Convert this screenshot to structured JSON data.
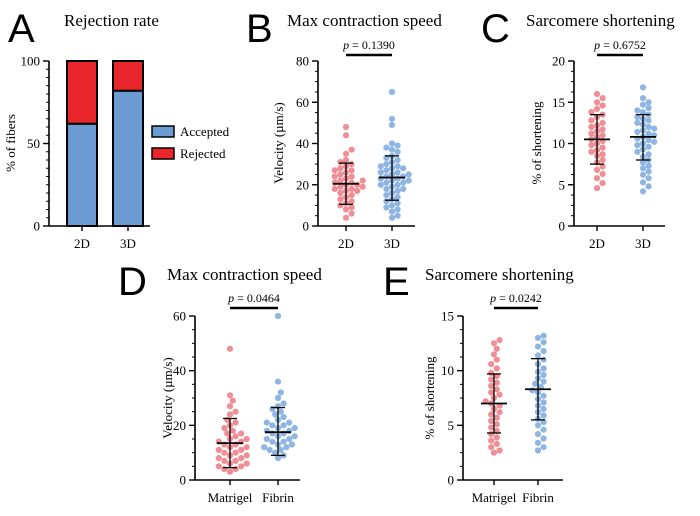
{
  "colors": {
    "accepted": "#6b9bd2",
    "rejected": "#e8262b",
    "dot_2d": "#f08e96",
    "dot_3d": "#8fb5e2",
    "axis": "#000000"
  },
  "chart_data": [
    {
      "id": "A",
      "letter": "A",
      "type": "bar",
      "stacked": true,
      "title": "Rejection rate",
      "xlabel": "",
      "ylabel": "% of fibers",
      "ylim": [
        0,
        100
      ],
      "yticks": [
        0,
        50,
        100
      ],
      "categories": [
        "2D",
        "3D"
      ],
      "series": [
        {
          "name": "Accepted",
          "values": [
            62,
            82
          ],
          "color_key": "accepted"
        },
        {
          "name": "Rejected",
          "values": [
            38,
            18
          ],
          "color_key": "rejected"
        }
      ],
      "legend_position": "right"
    },
    {
      "id": "B",
      "letter": "B",
      "type": "scatter",
      "title": "Max contraction speed",
      "ylabel": "Velocity (µm/s)",
      "ylim": [
        0,
        80
      ],
      "yticks": [
        0,
        20,
        40,
        60,
        80
      ],
      "categories": [
        "2D",
        "3D"
      ],
      "pvalue": {
        "label": "p",
        "text": " = 0.1390"
      },
      "groups": [
        {
          "name": "2D",
          "mean": 20.5,
          "sd_low": 10.5,
          "sd_high": 30.5,
          "color_key": "dot_2d",
          "values": [
            48,
            44,
            37,
            35,
            32,
            31,
            30,
            29,
            28,
            27,
            27,
            26,
            25,
            24,
            24,
            23,
            22,
            22,
            21,
            21,
            20,
            20,
            19,
            19,
            18,
            18,
            17,
            17,
            16,
            15,
            14,
            13,
            12,
            11,
            10,
            9,
            8,
            6,
            4
          ]
        },
        {
          "name": "3D",
          "mean": 23.5,
          "sd_low": 12.5,
          "sd_high": 34,
          "color_key": "dot_3d",
          "values": [
            65,
            52,
            49,
            40,
            39,
            38,
            37,
            36,
            34,
            33,
            32,
            31,
            30,
            29,
            29,
            28,
            28,
            27,
            26,
            26,
            25,
            25,
            24,
            24,
            23,
            23,
            22,
            22,
            21,
            21,
            20,
            20,
            19,
            18,
            18,
            17,
            16,
            15,
            14,
            13,
            12,
            11,
            10,
            9,
            8,
            7,
            5,
            4
          ]
        }
      ]
    },
    {
      "id": "C",
      "letter": "C",
      "type": "scatter",
      "title": "Sarcomere shortening",
      "ylabel": "% of shortening",
      "ylim": [
        0,
        20
      ],
      "yticks": [
        0,
        5,
        10,
        15,
        20
      ],
      "categories": [
        "2D",
        "3D"
      ],
      "pvalue": {
        "label": "p",
        "text": " = 0.6752"
      },
      "groups": [
        {
          "name": "2D",
          "mean": 10.5,
          "sd_low": 7.5,
          "sd_high": 13.5,
          "color_key": "dot_2d",
          "values": [
            16,
            15.5,
            15,
            14.6,
            14.2,
            13.8,
            13.5,
            13.2,
            12.8,
            12.5,
            12.2,
            12,
            11.7,
            11.5,
            11.2,
            11,
            10.8,
            10.5,
            10.3,
            10,
            9.8,
            9.5,
            9.2,
            9,
            8.7,
            8.5,
            8,
            7.7,
            7.2,
            6.8,
            6.3,
            5.8,
            5.2,
            4.6
          ]
        },
        {
          "name": "3D",
          "mean": 10.8,
          "sd_low": 8,
          "sd_high": 13.5,
          "color_key": "dot_3d",
          "values": [
            16.8,
            15.5,
            15,
            14.7,
            14.3,
            14,
            13.8,
            13.5,
            13.2,
            13,
            12.8,
            12.5,
            12.3,
            12,
            11.8,
            11.6,
            11.4,
            11.2,
            11,
            10.8,
            10.6,
            10.4,
            10.2,
            10,
            9.8,
            9.6,
            9.3,
            9,
            8.7,
            8.4,
            8,
            7.7,
            7.3,
            7,
            6.6,
            6.2,
            5.8,
            5.3,
            4.8,
            4.2
          ]
        }
      ]
    },
    {
      "id": "D",
      "letter": "D",
      "type": "scatter",
      "title": "Max contraction speed",
      "ylabel": "Velocity (µm/s)",
      "ylim": [
        0,
        60
      ],
      "yticks": [
        0,
        20,
        40,
        60
      ],
      "categories": [
        "Matrigel",
        "Fibrin"
      ],
      "pvalue": {
        "label": "p",
        "text": " = 0.0464"
      },
      "groups": [
        {
          "name": "Matrigel",
          "mean": 13.5,
          "sd_low": 4.5,
          "sd_high": 22.5,
          "color_key": "dot_2d",
          "values": [
            48,
            31,
            29,
            27,
            25,
            24,
            22,
            21,
            20,
            19,
            18,
            17,
            17,
            16,
            15,
            15,
            14,
            14,
            13,
            13,
            12,
            12,
            11,
            11,
            10,
            10,
            9,
            9,
            8,
            8,
            7,
            7,
            6,
            6,
            5,
            5,
            4,
            4,
            3
          ]
        },
        {
          "name": "Fibrin",
          "mean": 17.5,
          "sd_low": 9,
          "sd_high": 26.5,
          "color_key": "dot_3d",
          "values": [
            60,
            36,
            32,
            30,
            28,
            27,
            26,
            25,
            24,
            23,
            22,
            21,
            21,
            20,
            20,
            19,
            19,
            18,
            18,
            17,
            17,
            16,
            16,
            15,
            15,
            14,
            14,
            13,
            13,
            12,
            12,
            11,
            11,
            10,
            9,
            8
          ]
        }
      ]
    },
    {
      "id": "E",
      "letter": "E",
      "type": "scatter",
      "title": "Sarcomere shortening",
      "ylabel": "% of shortening",
      "ylim": [
        0,
        15
      ],
      "yticks": [
        0,
        5,
        10,
        15
      ],
      "categories": [
        "Matrigel",
        "Fibrin"
      ],
      "pvalue": {
        "label": "p",
        "text": " = 0.0242"
      },
      "groups": [
        {
          "name": "Matrigel",
          "mean": 7,
          "sd_low": 4.3,
          "sd_high": 9.7,
          "color_key": "dot_2d",
          "values": [
            12.8,
            12.5,
            12,
            11.5,
            11,
            10.6,
            10.2,
            9.8,
            9.5,
            9.2,
            8.9,
            8.6,
            8.3,
            8,
            7.8,
            7.5,
            7.2,
            7,
            6.8,
            6.5,
            6.2,
            6,
            5.7,
            5.4,
            5.1,
            4.8,
            4.5,
            4.2,
            3.9,
            3.6,
            3.3,
            3,
            2.7,
            2.5
          ]
        },
        {
          "name": "Fibrin",
          "mean": 8.3,
          "sd_low": 5.5,
          "sd_high": 11.1,
          "color_key": "dot_3d",
          "values": [
            13.2,
            13,
            12.6,
            12.2,
            11.8,
            11.4,
            11,
            10.6,
            10.2,
            9.9,
            9.6,
            9.3,
            9,
            8.8,
            8.5,
            8.2,
            8,
            7.7,
            7.4,
            7.1,
            6.8,
            6.5,
            6.2,
            5.9,
            5.6,
            5.3,
            5,
            4.6,
            4.2,
            3.8,
            3.4,
            3,
            2.7
          ]
        }
      ]
    }
  ]
}
